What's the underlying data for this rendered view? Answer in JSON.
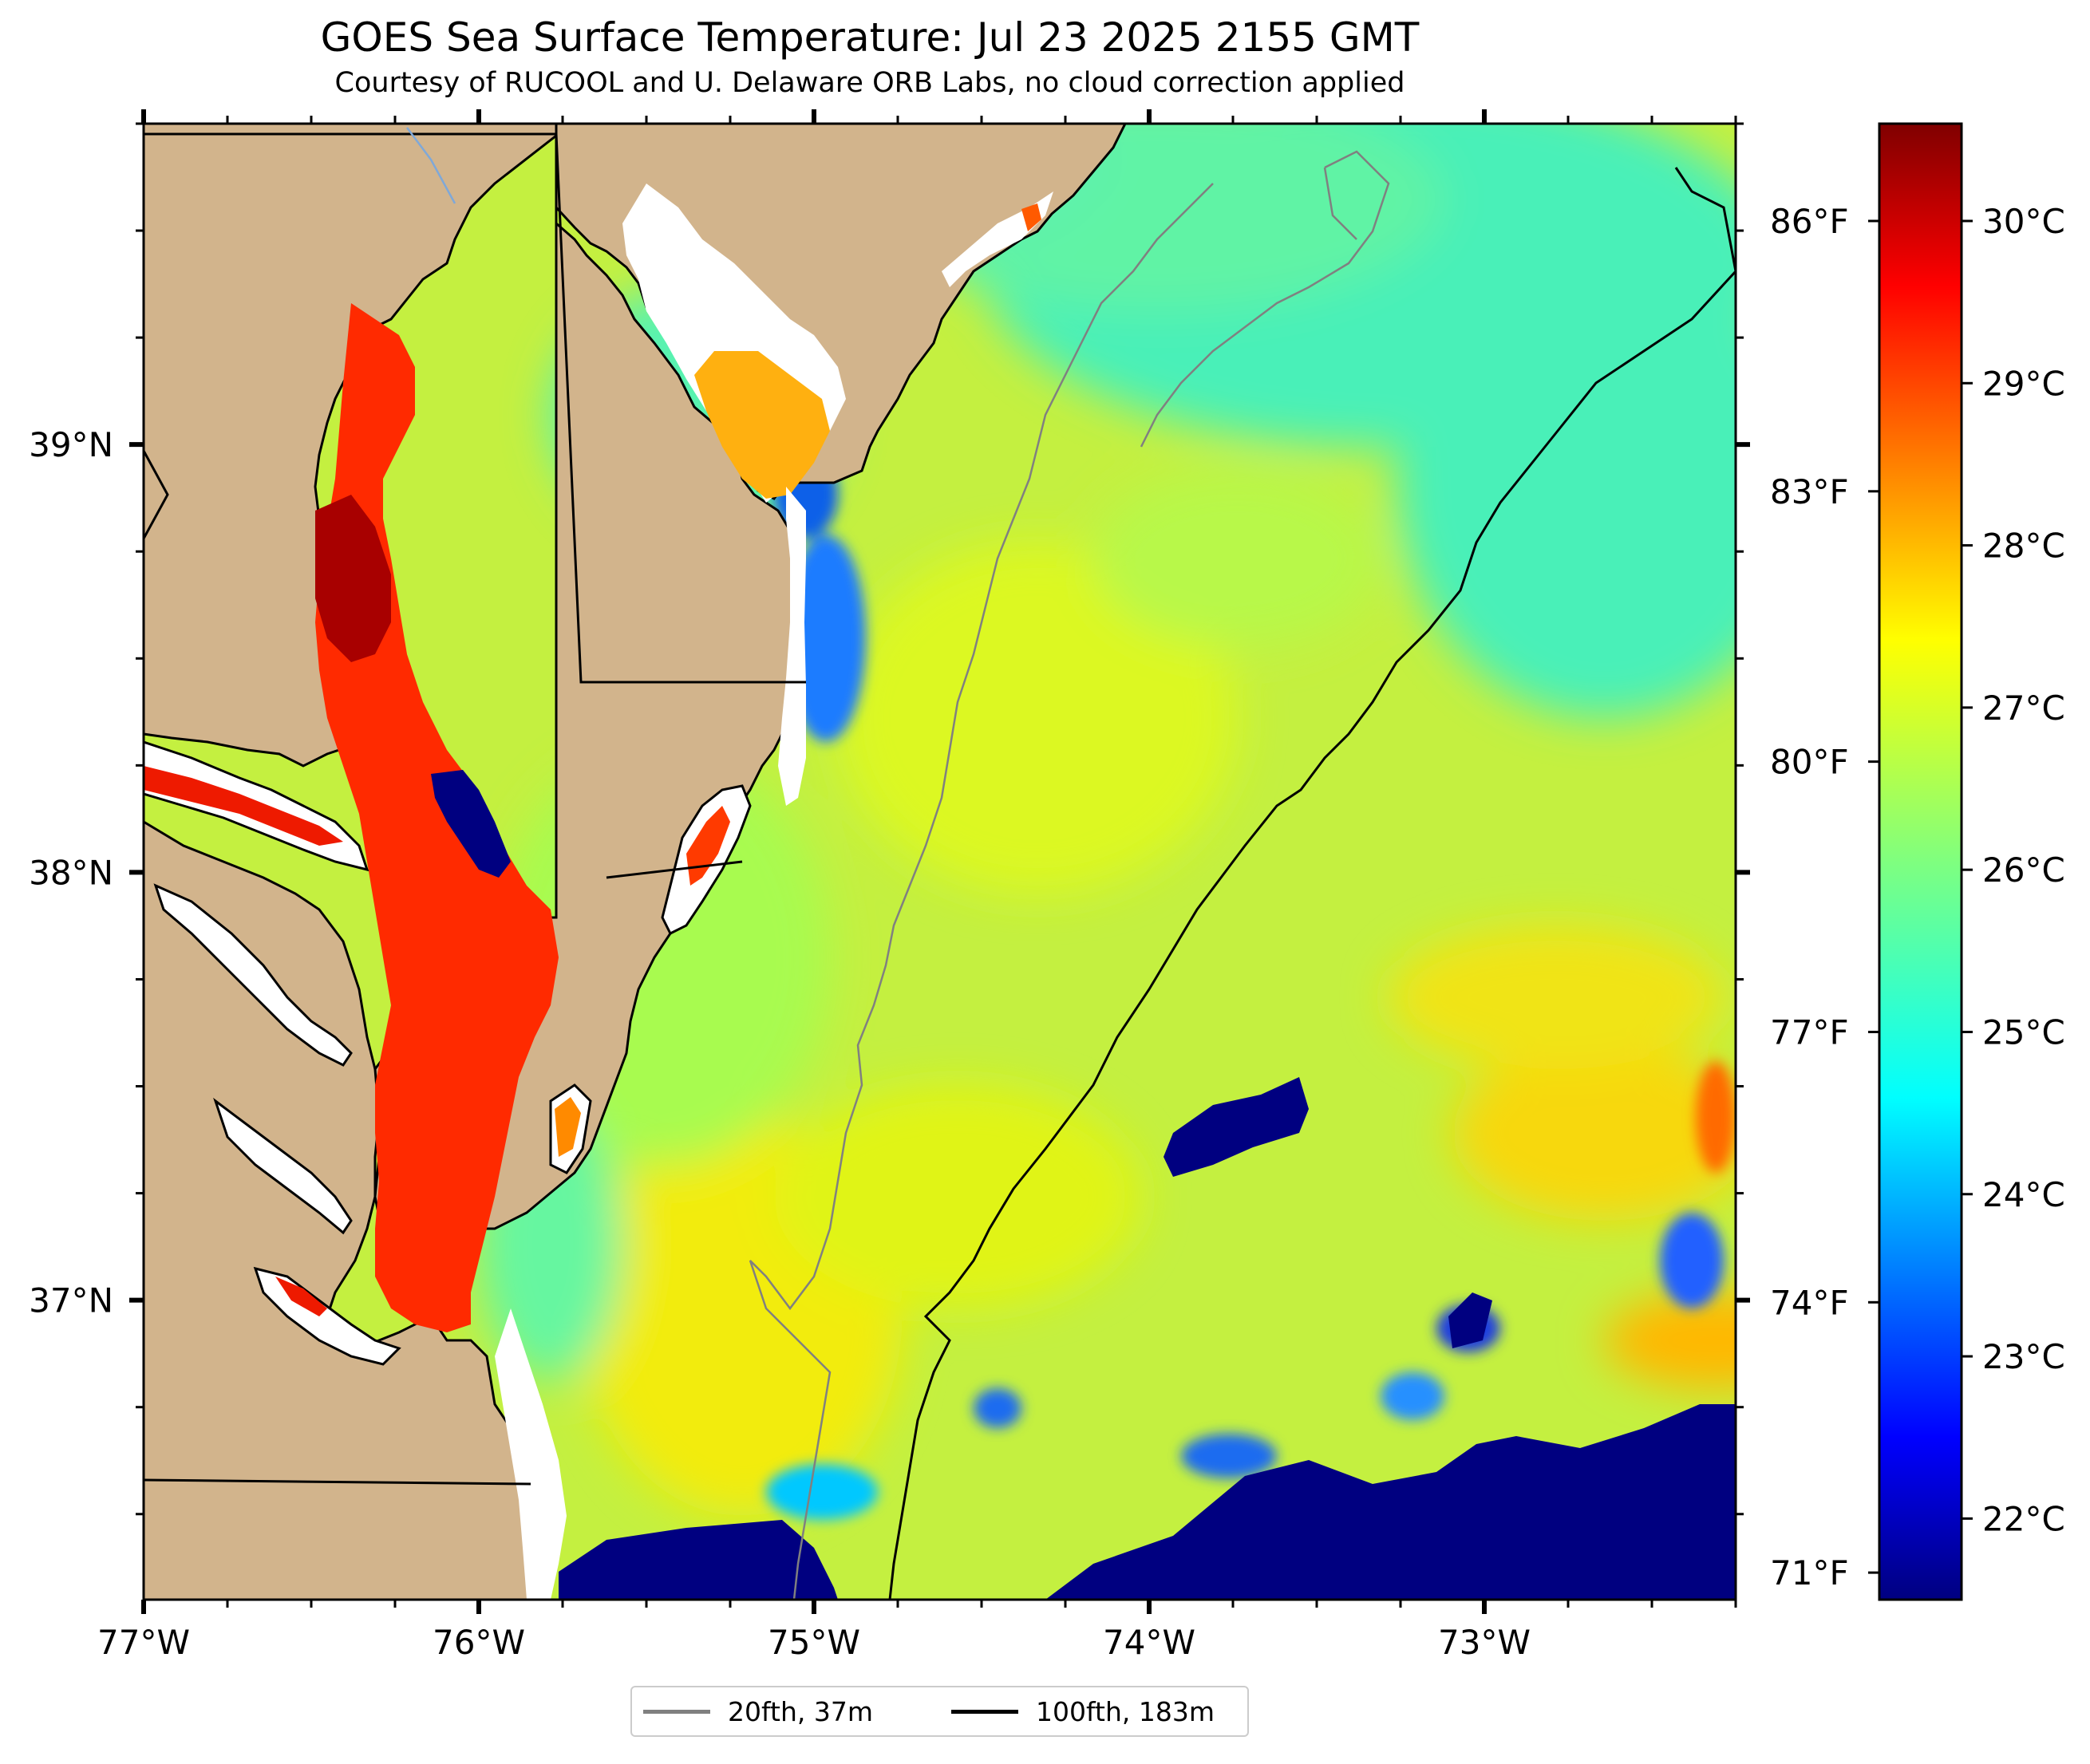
{
  "title": "GOES Sea Surface Temperature: Jul 23 2025 2155 GMT",
  "subtitle": "Courtesy of RUCOOL and U. Delaware ORB Labs, no cloud correction applied",
  "map": {
    "lon_range": [
      -77.0,
      -72.25
    ],
    "lat_range": [
      36.3,
      39.75
    ],
    "lon_ticks": [
      {
        "value": -77,
        "label": "77°W"
      },
      {
        "value": -76,
        "label": "76°W"
      },
      {
        "value": -75,
        "label": "75°W"
      },
      {
        "value": -74,
        "label": "74°W"
      },
      {
        "value": -73,
        "label": "73°W"
      }
    ],
    "lat_ticks": [
      {
        "value": 39,
        "label": "39°N"
      },
      {
        "value": 38,
        "label": "38°N"
      },
      {
        "value": 37,
        "label": "37°N"
      }
    ],
    "fahrenheit_ticks": [
      {
        "value": 86,
        "label": "86°F"
      },
      {
        "value": 83,
        "label": "83°F"
      },
      {
        "value": 80,
        "label": "80°F"
      },
      {
        "value": 77,
        "label": "77°F"
      },
      {
        "value": 74,
        "label": "74°F"
      },
      {
        "value": 71,
        "label": "71°F"
      }
    ],
    "land_color": "#d2b48c",
    "coast_color": "#000000",
    "isobath_20_color": "#808080",
    "isobath_100_color": "#000000"
  },
  "colorbar": {
    "colormap": "jet",
    "range_c": [
      21.5,
      30.6
    ],
    "ticks": [
      {
        "value": 30,
        "label": "30°C"
      },
      {
        "value": 29,
        "label": "29°C"
      },
      {
        "value": 28,
        "label": "28°C"
      },
      {
        "value": 27,
        "label": "27°C"
      },
      {
        "value": 26,
        "label": "26°C"
      },
      {
        "value": 25,
        "label": "25°C"
      },
      {
        "value": 24,
        "label": "24°C"
      },
      {
        "value": 23,
        "label": "23°C"
      },
      {
        "value": 22,
        "label": "22°C"
      }
    ]
  },
  "legend": [
    {
      "label": "20fth, 37m",
      "color": "#808080"
    },
    {
      "label": "100fth, 183m",
      "color": "#000000"
    }
  ]
}
